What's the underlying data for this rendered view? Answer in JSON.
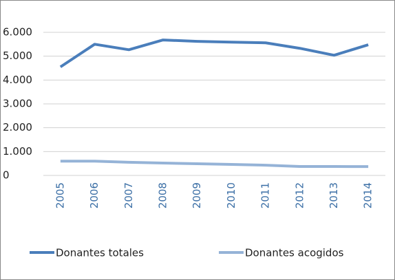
{
  "chart_data": {
    "type": "line",
    "categories": [
      "2005",
      "2006",
      "2007",
      "2008",
      "2009",
      "2010",
      "2011",
      "2012",
      "2013",
      "2014"
    ],
    "series": [
      {
        "name": "Donantes totales",
        "color": "#4a7ebb",
        "values": [
          4550,
          5500,
          5270,
          5680,
          5620,
          5590,
          5560,
          5330,
          5040,
          5480
        ]
      },
      {
        "name": "Donantes acogidos",
        "color": "#95b3d7",
        "values": [
          600,
          600,
          550,
          520,
          490,
          460,
          430,
          375,
          375,
          370
        ]
      }
    ],
    "ylim": [
      0,
      6000
    ],
    "yticks": [
      0,
      {
        "value": 1000,
        "label": "1.000"
      },
      {
        "value": 2000,
        "label": "2.000"
      },
      {
        "value": 3000,
        "label": "3.000"
      },
      {
        "value": 4000,
        "label": "4.000"
      },
      {
        "value": 5000,
        "label": "5.000"
      },
      {
        "value": 6000,
        "label": "6.000"
      }
    ],
    "grid": true,
    "legend": "bottom"
  }
}
